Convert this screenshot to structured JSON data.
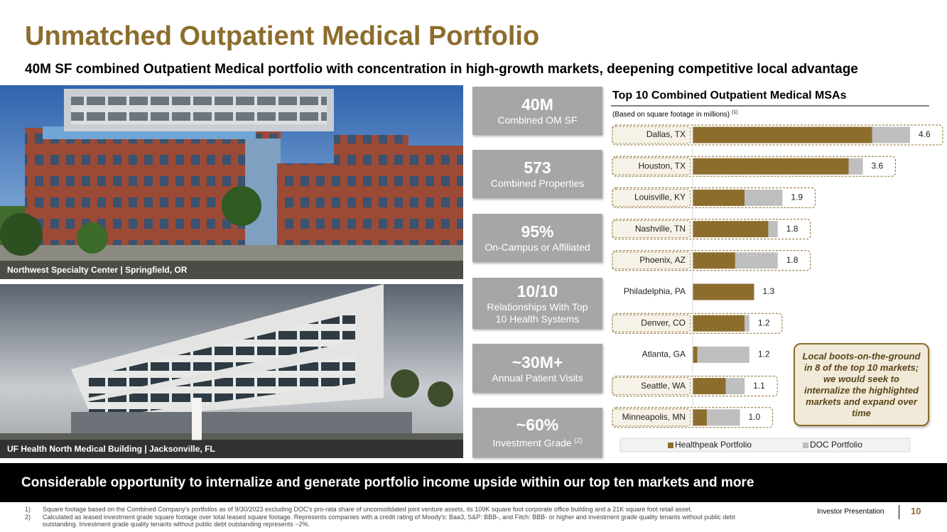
{
  "title": "Unmatched Outpatient Medical Portfolio",
  "subtitle": "40M SF combined Outpatient Medical portfolio with concentration in high-growth markets, deepening competitive local advantage",
  "photos": [
    "Northwest Specialty Center | Springfield, OR",
    "UF Health North Medical Building | Jacksonville, FL"
  ],
  "stats": [
    {
      "value": "40M",
      "label": "Combined OM SF"
    },
    {
      "value": "573",
      "label": "Combined Properties"
    },
    {
      "value": "95%",
      "label": "On-Campus or Affiliated"
    },
    {
      "value": "10/10",
      "label": "Relationships With Top 10 Health Systems"
    },
    {
      "value": "~30M+",
      "label": "Annual Patient Visits"
    },
    {
      "value": "~60%",
      "label": "Investment Grade",
      "note": "(2)"
    }
  ],
  "chart_data": {
    "type": "stacked_barh",
    "title": "Top 10 Combined Outpatient Medical MSAs",
    "subtitle": "(Based on square footage in millions)",
    "subtitle_note": "(1)",
    "categories": [
      "Dallas, TX",
      "Houston, TX",
      "Louisville, KY",
      "Nashville, TN",
      "Phoenix, AZ",
      "Philadelphia, PA",
      "Denver, CO",
      "Atlanta, GA",
      "Seattle, WA",
      "Minneapolis, MN"
    ],
    "series": [
      {
        "name": "Healthpeak Portfolio",
        "color": "#8c6d2c",
        "values": [
          3.8,
          3.3,
          1.1,
          1.6,
          0.9,
          1.3,
          1.1,
          0.1,
          0.7,
          0.3
        ]
      },
      {
        "name": "DOC Portfolio",
        "color": "#bfbfbf",
        "values": [
          0.8,
          0.3,
          0.8,
          0.2,
          0.9,
          0,
          0.1,
          1.1,
          0.4,
          0.7
        ]
      }
    ],
    "total_labels": [
      "4.6",
      "3.6",
      "1.9",
      "1.8",
      "1.8",
      "1.3",
      "1.2",
      "1.2",
      "1.1",
      "1.0"
    ],
    "highlighted": [
      true,
      true,
      true,
      true,
      true,
      false,
      true,
      false,
      true,
      true
    ],
    "legend": "bottom"
  },
  "callout": "Local boots-on-the-ground in 8 of the top 10 markets; we would seek to internalize the highlighted markets and expand over time",
  "banner": "Considerable opportunity to internalize and generate portfolio income upside within our top ten markets and more",
  "footnotes": [
    {
      "marker": "1)",
      "text": "Square footage based on the Combined Company's portfolios as of 9/30/2023 excluding DOC's pro-rata share of unconsolidated joint venture assets, its 109K square foot corporate office building and a 21K square foot retail asset."
    },
    {
      "marker": "2)",
      "text": "Calculated as leased investment grade square footage over total leased square footage. Represents companies with a credit rating of Moody's: Baa3, S&P: BBB-, and Fitch: BBB- or higher and investment grade quality tenants without public debt outstanding. Investment grade quality tenants without public debt outstanding represents ~2%."
    }
  ],
  "footer": {
    "label": "Investor Presentation",
    "page": "10"
  }
}
